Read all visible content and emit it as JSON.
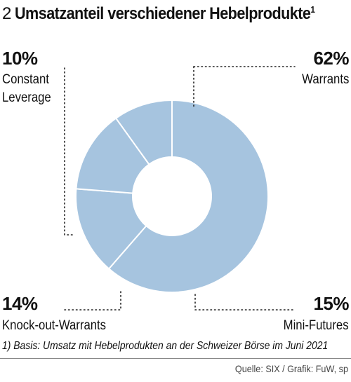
{
  "header": {
    "figure_number": "2",
    "title": "Umsatzanteil verschiedener Hebelprodukte",
    "title_footnote_mark": "1"
  },
  "chart_data": {
    "type": "pie",
    "title": "Umsatzanteil verschiedener Hebelprodukte",
    "donut": true,
    "slice_color": "#a6c4df",
    "slices": [
      {
        "label": "Warrants",
        "value": 62,
        "value_label": "62%"
      },
      {
        "label": "Mini-Futures",
        "value": 15,
        "value_label": "15%"
      },
      {
        "label": "Knock-out-Warrants",
        "value": 14,
        "value_label": "14%"
      },
      {
        "label": "Constant Leverage",
        "value": 10,
        "value_label": "10%"
      }
    ]
  },
  "labels": {
    "constant_leverage": {
      "pct": "10%",
      "line1": "Constant",
      "line2": "Leverage"
    },
    "warrants": {
      "pct": "62%",
      "line1": "Warrants"
    },
    "knockout": {
      "pct": "14%",
      "line1": "Knock-out-Warrants"
    },
    "minifutures": {
      "pct": "15%",
      "line1": "Mini-Futures"
    }
  },
  "footnote": "1) Basis: Umsatz mit Hebelprodukten an der Schweizer Börse im Juni 2021",
  "source": "Quelle: SIX / Grafik: FuW, sp"
}
